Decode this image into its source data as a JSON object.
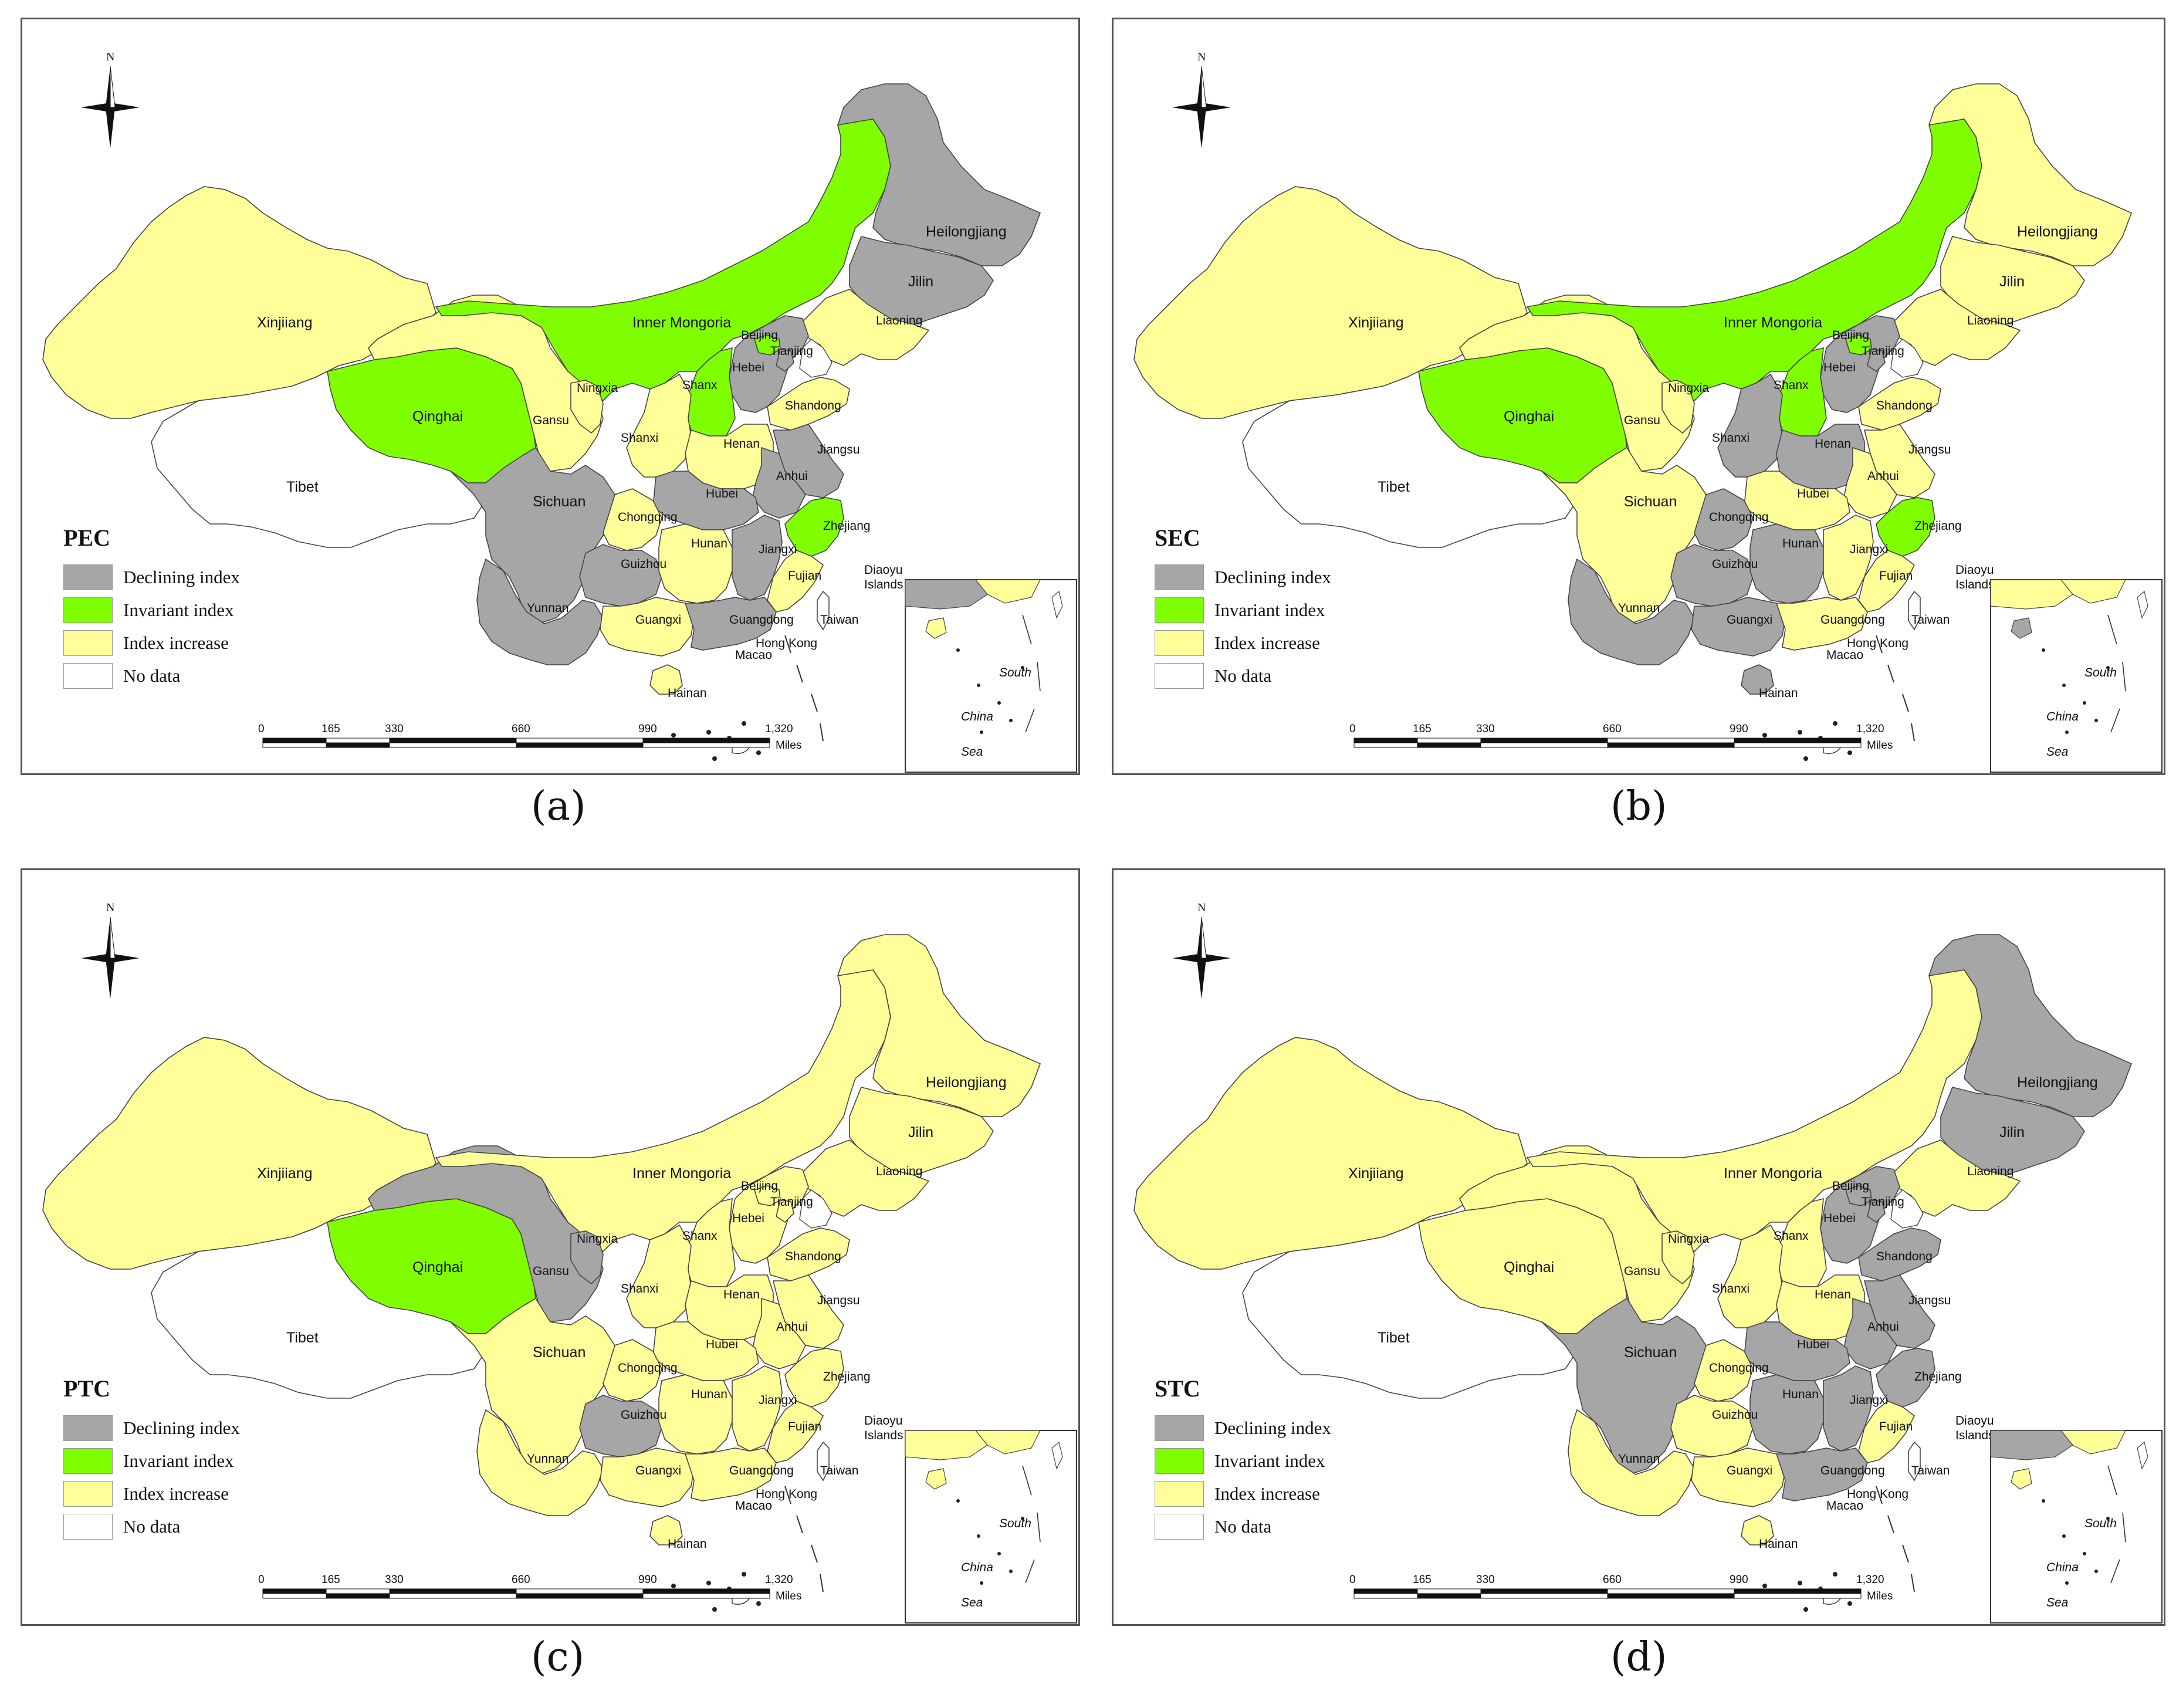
{
  "legend": {
    "declining": "Declining index",
    "invariant": "Invariant index",
    "increase": "Index increase",
    "nodata": "No data"
  },
  "colors": {
    "declining": "#a6a6a6",
    "invariant": "#7fff00",
    "increase": "#ffff99",
    "nodata": "#ffffff"
  },
  "north_label": "N",
  "scale": {
    "ticks": [
      "0",
      "165",
      "330",
      "660",
      "990",
      "1,320"
    ],
    "unit": "Miles"
  },
  "labels": {
    "xinjiang": "Xinjiiang",
    "tibet": "Tibet",
    "qinghai": "Qinghai",
    "gansu": "Gansu",
    "inner_mongolia": "Inner Mongoria",
    "ningxia": "Ningxia",
    "shanxi_w": "Shanxi",
    "shanxi_e": "Shanx",
    "hebei": "Hebei",
    "beijing": "Beijing",
    "tianjing": "Tianjing",
    "liaoning": "Liaoning",
    "jilin": "Jilin",
    "heilongjiang": "Heilongjiang",
    "shandong": "Shandong",
    "henan": "Henan",
    "jiangsu": "Jiangsu",
    "anhui": "Anhui",
    "hubei": "Hubei",
    "sichuan": "Sichuan",
    "chongqing": "Chongqing",
    "guizhou": "Guizhou",
    "yunnan": "Yunnan",
    "hunan": "Hunan",
    "jiangxi": "Jiangxi",
    "zhejiang": "Zhejiang",
    "fujian": "Fujian",
    "guangxi": "Guangxi",
    "guangdong": "Guangdong",
    "hainan": "Hainan",
    "hongkong": "Hong Kong",
    "macao": "Macao",
    "taiwan": "Taiwan",
    "diaoyu1": "Diaoyu",
    "diaoyu2": "Islands",
    "sea1": "South",
    "sea2": "China",
    "sea3": "Sea"
  },
  "panels": [
    {
      "title": "PEC",
      "caption": "(a)",
      "status": {
        "xinjiang": "increase",
        "tibet": "nodata",
        "qinghai": "invariant",
        "gansu": "increase",
        "inner_mongolia": "invariant",
        "ningxia": "increase",
        "shanxi_w": "increase",
        "shanxi_e": "invariant",
        "hebei": "declining",
        "beijing": "invariant",
        "tianjing": "declining",
        "liaoning": "increase",
        "jilin": "declining",
        "heilongjiang": "declining",
        "shandong": "increase",
        "henan": "increase",
        "jiangsu": "declining",
        "anhui": "declining",
        "hubei": "declining",
        "sichuan": "declining",
        "chongqing": "increase",
        "guizhou": "declining",
        "yunnan": "declining",
        "hunan": "increase",
        "jiangxi": "declining",
        "zhejiang": "invariant",
        "fujian": "increase",
        "guangxi": "increase",
        "guangdong": "declining",
        "hainan": "increase",
        "taiwan": "nodata"
      }
    },
    {
      "title": "SEC",
      "caption": "(b)",
      "status": {
        "xinjiang": "increase",
        "tibet": "nodata",
        "qinghai": "invariant",
        "gansu": "increase",
        "inner_mongolia": "invariant",
        "ningxia": "increase",
        "shanxi_w": "declining",
        "shanxi_e": "invariant",
        "hebei": "declining",
        "beijing": "invariant",
        "tianjing": "declining",
        "liaoning": "increase",
        "jilin": "increase",
        "heilongjiang": "increase",
        "shandong": "increase",
        "henan": "declining",
        "jiangsu": "increase",
        "anhui": "increase",
        "hubei": "increase",
        "sichuan": "increase",
        "chongqing": "declining",
        "guizhou": "declining",
        "yunnan": "declining",
        "hunan": "declining",
        "jiangxi": "increase",
        "zhejiang": "invariant",
        "fujian": "increase",
        "guangxi": "declining",
        "guangdong": "increase",
        "hainan": "declining",
        "taiwan": "nodata"
      }
    },
    {
      "title": "PTC",
      "caption": "(c)",
      "status": {
        "xinjiang": "increase",
        "tibet": "nodata",
        "qinghai": "invariant",
        "gansu": "declining",
        "inner_mongolia": "increase",
        "ningxia": "declining",
        "shanxi_w": "increase",
        "shanxi_e": "increase",
        "hebei": "increase",
        "beijing": "increase",
        "tianjing": "increase",
        "liaoning": "increase",
        "jilin": "increase",
        "heilongjiang": "increase",
        "shandong": "increase",
        "henan": "increase",
        "jiangsu": "increase",
        "anhui": "increase",
        "hubei": "increase",
        "sichuan": "increase",
        "chongqing": "increase",
        "guizhou": "declining",
        "yunnan": "increase",
        "hunan": "increase",
        "jiangxi": "increase",
        "zhejiang": "increase",
        "fujian": "increase",
        "guangxi": "increase",
        "guangdong": "increase",
        "hainan": "increase",
        "taiwan": "nodata"
      }
    },
    {
      "title": "STC",
      "caption": "(d)",
      "status": {
        "xinjiang": "increase",
        "tibet": "nodata",
        "qinghai": "increase",
        "gansu": "increase",
        "inner_mongolia": "increase",
        "ningxia": "increase",
        "shanxi_w": "increase",
        "shanxi_e": "increase",
        "hebei": "declining",
        "beijing": "declining",
        "tianjing": "declining",
        "liaoning": "increase",
        "jilin": "declining",
        "heilongjiang": "declining",
        "shandong": "declining",
        "henan": "increase",
        "jiangsu": "declining",
        "anhui": "declining",
        "hubei": "declining",
        "sichuan": "declining",
        "chongqing": "increase",
        "guizhou": "increase",
        "yunnan": "increase",
        "hunan": "declining",
        "jiangxi": "declining",
        "zhejiang": "declining",
        "fujian": "increase",
        "guangxi": "increase",
        "guangdong": "declining",
        "hainan": "increase",
        "taiwan": "nodata"
      }
    }
  ]
}
